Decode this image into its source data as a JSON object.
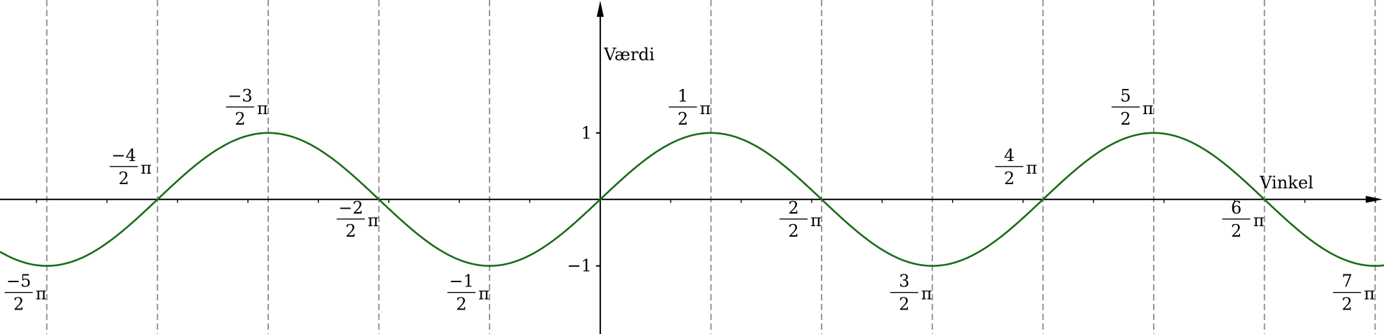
{
  "chart_data": {
    "type": "line",
    "title": "",
    "xlabel": "Vinkel",
    "ylabel": "Værdi",
    "xlim": [
      -8.518,
      11.122
    ],
    "ylim": [
      -2.025,
      3.0
    ],
    "grid": "vertical dashed lines at multiples of pi/2",
    "yticks": [
      {
        "value": 1,
        "label": "1"
      },
      {
        "value": -1,
        "label": "−1"
      }
    ],
    "vlines": [
      {
        "x": -7.854,
        "num": "−5",
        "den": "2",
        "sym": "π"
      },
      {
        "x": -6.283,
        "num": "−4",
        "den": "2",
        "sym": "π"
      },
      {
        "x": -4.712,
        "num": "−3",
        "den": "2",
        "sym": "π"
      },
      {
        "x": -3.1416,
        "num": "−2",
        "den": "2",
        "sym": "π"
      },
      {
        "x": -1.5708,
        "num": "−1",
        "den": "2",
        "sym": "π"
      },
      {
        "x": 1.5708,
        "num": "1",
        "den": "2",
        "sym": "π"
      },
      {
        "x": 3.1416,
        "num": "2",
        "den": "2",
        "sym": "π"
      },
      {
        "x": 4.712,
        "num": "3",
        "den": "2",
        "sym": "π"
      },
      {
        "x": 6.283,
        "num": "4",
        "den": "2",
        "sym": "π"
      },
      {
        "x": 7.854,
        "num": "5",
        "den": "2",
        "sym": "π"
      },
      {
        "x": 9.425,
        "num": "6",
        "den": "2",
        "sym": "π"
      },
      {
        "x": 10.996,
        "num": "7",
        "den": "2",
        "sym": "π"
      }
    ],
    "series": [
      {
        "function": "sin(x)",
        "color": "#1a6b1a"
      }
    ],
    "axis_color": "#000000",
    "grid_color": "#8a8a8a"
  }
}
